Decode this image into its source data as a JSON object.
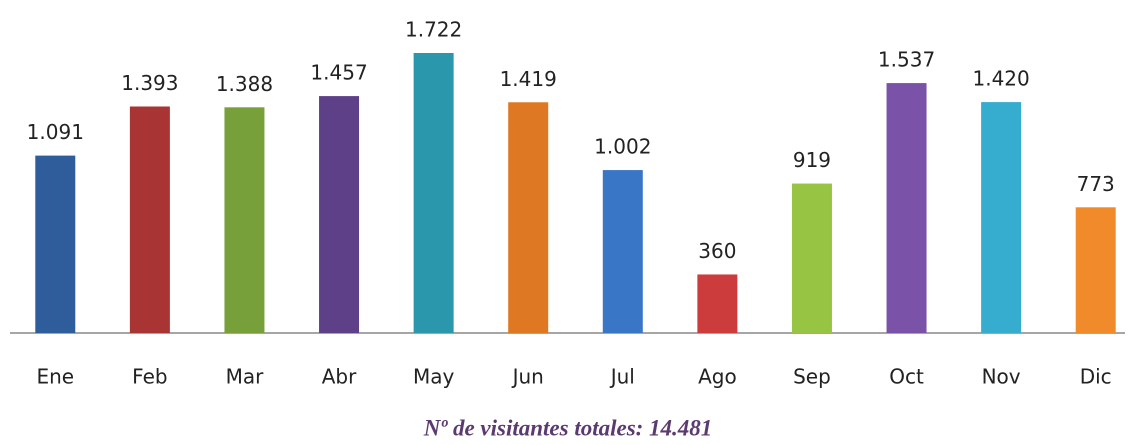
{
  "chart_data": {
    "type": "bar",
    "categories": [
      "Ene",
      "Feb",
      "Mar",
      "Abr",
      "May",
      "Jun",
      "Jul",
      "Ago",
      "Sep",
      "Oct",
      "Nov",
      "Dic"
    ],
    "values": [
      1091,
      1393,
      1388,
      1457,
      1722,
      1419,
      1002,
      360,
      919,
      1537,
      1420,
      773
    ],
    "value_labels": [
      "1.091",
      "1.393",
      "1.388",
      "1.457",
      "1.722",
      "1.419",
      "1.002",
      "360",
      "919",
      "1.537",
      "1.420",
      "773"
    ],
    "colors": [
      "#2f5d9c",
      "#a83434",
      "#77a03a",
      "#5e4088",
      "#2a97ad",
      "#de7822",
      "#3a76c6",
      "#cc3c3c",
      "#98c444",
      "#7a52a8",
      "#36acce",
      "#f08a2a"
    ],
    "caption": "Nº de visitantes totales: 14.481"
  }
}
